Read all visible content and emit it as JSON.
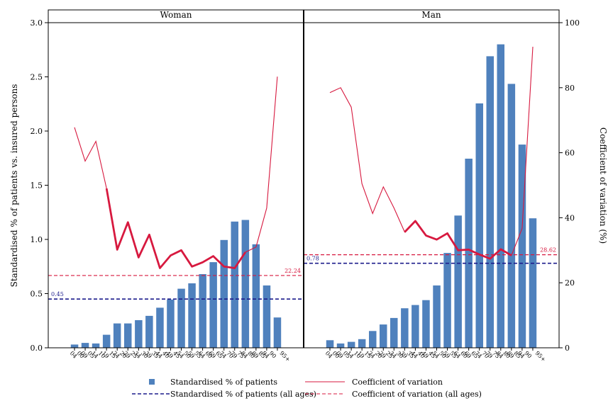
{
  "chart_data": {
    "type": "bar",
    "facets": [
      "Woman",
      "Man"
    ],
    "categories": [
      "00-04",
      "05-09",
      "10-14",
      "15-19",
      "20-24",
      "25-29",
      "30-34",
      "35-39",
      "40-44",
      "45-49",
      "50-54",
      "55-59",
      "60-64",
      "65-69",
      "70-74",
      "75-79",
      "80-84",
      "85-89",
      "90-94",
      "95+"
    ],
    "category_labels": [
      [
        "00",
        "04"
      ],
      [
        "05",
        "09"
      ],
      [
        "10",
        "14"
      ],
      [
        "15",
        "19"
      ],
      [
        "20",
        "24"
      ],
      [
        "25",
        "29"
      ],
      [
        "30",
        "34"
      ],
      [
        "35",
        "39"
      ],
      [
        "40",
        "44"
      ],
      [
        "45",
        "49"
      ],
      [
        "50",
        "54"
      ],
      [
        "55",
        "59"
      ],
      [
        "60",
        "64"
      ],
      [
        "65",
        "69"
      ],
      [
        "70",
        "74"
      ],
      [
        "75",
        "79"
      ],
      [
        "80",
        "84"
      ],
      [
        "85",
        "89"
      ],
      [
        "90",
        "94"
      ],
      [
        "95+",
        ""
      ]
    ],
    "ylabel": "Standardised % of patients vs. insured persons",
    "ylim": [
      0,
      3.0
    ],
    "yticks": [
      "0.0",
      "0.5",
      "1.0",
      "1.5",
      "2.0",
      "2.5",
      "3.0"
    ],
    "y2label": "Coefficient of variation (%)",
    "y2lim": [
      0,
      100
    ],
    "y2ticks": [
      "0",
      "20",
      "40",
      "60",
      "80",
      "100"
    ],
    "grid": false,
    "legend_position": "bottom",
    "series": {
      "bars": {
        "name": "Standardised % of patients",
        "color": "#4f81bd",
        "Woman": [
          0.03,
          0.045,
          0.04,
          0.12,
          0.225,
          0.225,
          0.255,
          0.295,
          0.37,
          0.445,
          0.545,
          0.595,
          0.68,
          0.79,
          0.995,
          1.165,
          1.18,
          0.955,
          0.575,
          0.28
        ],
        "Man": [
          0.07,
          0.04,
          0.055,
          0.08,
          0.155,
          0.215,
          0.275,
          0.365,
          0.395,
          0.44,
          0.575,
          0.875,
          1.22,
          1.745,
          2.255,
          2.69,
          2.8,
          2.435,
          1.875,
          1.195
        ]
      },
      "cv": {
        "name": "Coefficient of variation",
        "color": "#d7193f",
        "Woman": [
          67.8,
          57.4,
          63.5,
          49,
          30.2,
          38.6,
          27.8,
          34.8,
          24.5,
          28.4,
          30,
          25,
          26.3,
          28.2,
          25,
          24.5,
          29.4,
          31,
          43,
          83.4
        ],
        "Man": [
          78.5,
          80,
          74,
          50.5,
          41.3,
          49.5,
          43,
          35.6,
          39,
          34.5,
          33.3,
          35.2,
          30,
          30.2,
          28.7,
          27.4,
          30.3,
          28.4,
          36.7,
          92.6
        ],
        "Woman_bold_from": "15-19",
        "Woman_bold_to": "80-84",
        "Man_bold_from": "35-39",
        "Man_bold_to": "85-89"
      },
      "ref_pct": {
        "name": "Standardised % of patients (all ages)",
        "color": "#1c1c8c",
        "Woman": 0.45,
        "Man": 0.78,
        "Woman_label": "0.45",
        "Man_label": "0.78"
      },
      "ref_cv": {
        "name": "Coefficient of variation (all ages)",
        "color": "#d7193f",
        "Woman": 22.24,
        "Man": 28.62,
        "Woman_label": "22.24",
        "Man_label": "28.62"
      }
    }
  }
}
